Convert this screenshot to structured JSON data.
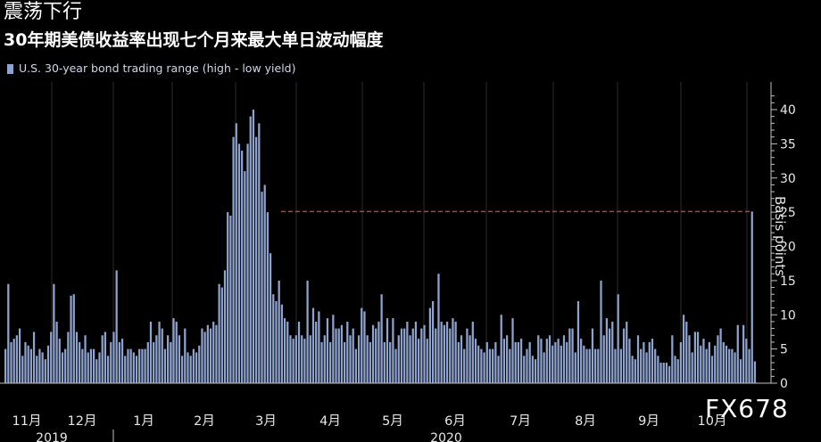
{
  "title": "震荡下行",
  "subtitle": "30年期美债收益率出现七个月来最大单日波动幅度",
  "watermark": "FX678",
  "chart_data": {
    "type": "bar",
    "series": [
      {
        "name": "U.S. 30-year bond trading range (high - low yield)",
        "color": "#8fa3cf"
      }
    ],
    "ylabel": "Basis points",
    "ylim": [
      0,
      43
    ],
    "yticks": [
      0,
      5,
      10,
      15,
      20,
      25,
      30,
      35,
      40
    ],
    "reference_line": {
      "value": 25.1,
      "color": "#d9332f",
      "style": "dashed"
    },
    "month_labels": [
      "11月",
      "12月",
      "1月",
      "2月",
      "3月",
      "4月",
      "5月",
      "6月",
      "7月",
      "8月",
      "9月",
      "10月"
    ],
    "year_labels": [
      "2019",
      "2020"
    ],
    "values": [
      5,
      14.5,
      6,
      6.5,
      7,
      8,
      4,
      6,
      5.5,
      5,
      7.5,
      4,
      5,
      4.5,
      3.5,
      5.5,
      7.5,
      14.5,
      9,
      6.5,
      4.5,
      5,
      7.5,
      12.8,
      13,
      7.5,
      6,
      5,
      7,
      4.5,
      5,
      5,
      3.5,
      4.5,
      7,
      7.5,
      4,
      6,
      7.5,
      16.5,
      6,
      6.5,
      4,
      5,
      5,
      4.5,
      4,
      5,
      5,
      5,
      6,
      9,
      6,
      7,
      9,
      8,
      5,
      7,
      6,
      9.5,
      9,
      7,
      4,
      8,
      4.5,
      4,
      5,
      4.5,
      5.5,
      8,
      7.5,
      8.5,
      8,
      9,
      8.5,
      14.5,
      14,
      16.5,
      25,
      24.5,
      36,
      38,
      35,
      34,
      31,
      35,
      39,
      40,
      36,
      38,
      28,
      29,
      25,
      19,
      13,
      12,
      15,
      11.5,
      9.5,
      9,
      7,
      6.5,
      7,
      9,
      7,
      6.5,
      15,
      7,
      11,
      9,
      10.5,
      6,
      7,
      9.5,
      6,
      10,
      8,
      8,
      8.5,
      6,
      9,
      7,
      8,
      5,
      7,
      11,
      10.5,
      7,
      6,
      8.5,
      8,
      9,
      13,
      6,
      9.5,
      6,
      9.5,
      5,
      7,
      8,
      8,
      9,
      7,
      8,
      9,
      6.5,
      8,
      8.5,
      6.5,
      11,
      12,
      8,
      16,
      9,
      8.5,
      9,
      8,
      9.5,
      9,
      6,
      7,
      5,
      8,
      7,
      9,
      6.5,
      5.5,
      5,
      4.5,
      6,
      5,
      5,
      6,
      4,
      10,
      6.5,
      7,
      5,
      9.5,
      6,
      6,
      6.5,
      4,
      5,
      6,
      4,
      3.5,
      7,
      6.5,
      4.5,
      6.5,
      7,
      5.5,
      6,
      6.5,
      5.5,
      7,
      6,
      8,
      8,
      4.5,
      12,
      6.5,
      5.5,
      5,
      5,
      8,
      5,
      5,
      15,
      7,
      9.5,
      8,
      9,
      5,
      13,
      5,
      8,
      9,
      6.5,
      4,
      3.5,
      7,
      5,
      6,
      4.5,
      6,
      6.5,
      5,
      4,
      3,
      3,
      3,
      2.5,
      7,
      4,
      3.5,
      6,
      10,
      9,
      7,
      4.5,
      7.5,
      7.5,
      5.5,
      6.5,
      5,
      6,
      4,
      5.5,
      7,
      8,
      6,
      5.5,
      5,
      5,
      4.5,
      8.5,
      3.5,
      8.5,
      6.5,
      5,
      25.1,
      3.2
    ]
  }
}
